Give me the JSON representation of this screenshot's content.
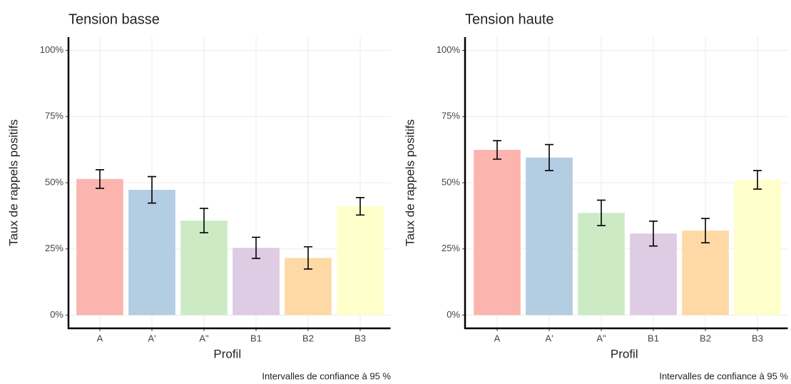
{
  "chart_data": [
    {
      "type": "bar",
      "title": "Tension basse",
      "x_label": "Profil",
      "y_label": "Taux de rappels positifs",
      "caption": "Intervalles de confiance à 95 %",
      "categories": [
        "A",
        "A'",
        "A\"",
        "B1",
        "B2",
        "B3"
      ],
      "values": [
        51.4,
        47.3,
        35.7,
        25.4,
        21.6,
        41.1
      ],
      "errors": [
        3.5,
        5,
        4.6,
        4,
        4.2,
        3.3
      ],
      "colors": [
        "#fbb4ae",
        "#b3cde3",
        "#ccebc5",
        "#decbe4",
        "#fed9a6",
        "#ffffcc"
      ],
      "ylim": [
        -5,
        105
      ],
      "yticks": [
        {
          "value": 0,
          "label": "0%"
        },
        {
          "value": 25,
          "label": "25%"
        },
        {
          "value": 50,
          "label": "50%"
        },
        {
          "value": 75,
          "label": "75%"
        },
        {
          "value": 100,
          "label": "100%"
        }
      ],
      "grid": true
    },
    {
      "type": "bar",
      "title": "Tension haute",
      "x_label": "Profil",
      "y_label": "Taux de rappels positifs",
      "caption": "Intervalles de confiance à 95 %",
      "categories": [
        "A",
        "A'",
        "A\"",
        "B1",
        "B2",
        "B3"
      ],
      "values": [
        62.4,
        59.5,
        38.6,
        30.8,
        31.9,
        51.1
      ],
      "errors": [
        3.5,
        4.9,
        4.8,
        4.7,
        4.6,
        3.5
      ],
      "colors": [
        "#fbb4ae",
        "#b3cde3",
        "#ccebc5",
        "#decbe4",
        "#fed9a6",
        "#ffffcc"
      ],
      "ylim": [
        -5,
        105
      ],
      "yticks": [
        {
          "value": 0,
          "label": "0%"
        },
        {
          "value": 25,
          "label": "25%"
        },
        {
          "value": 50,
          "label": "50%"
        },
        {
          "value": 75,
          "label": "75%"
        },
        {
          "value": 100,
          "label": "100%"
        }
      ],
      "grid": true
    }
  ]
}
